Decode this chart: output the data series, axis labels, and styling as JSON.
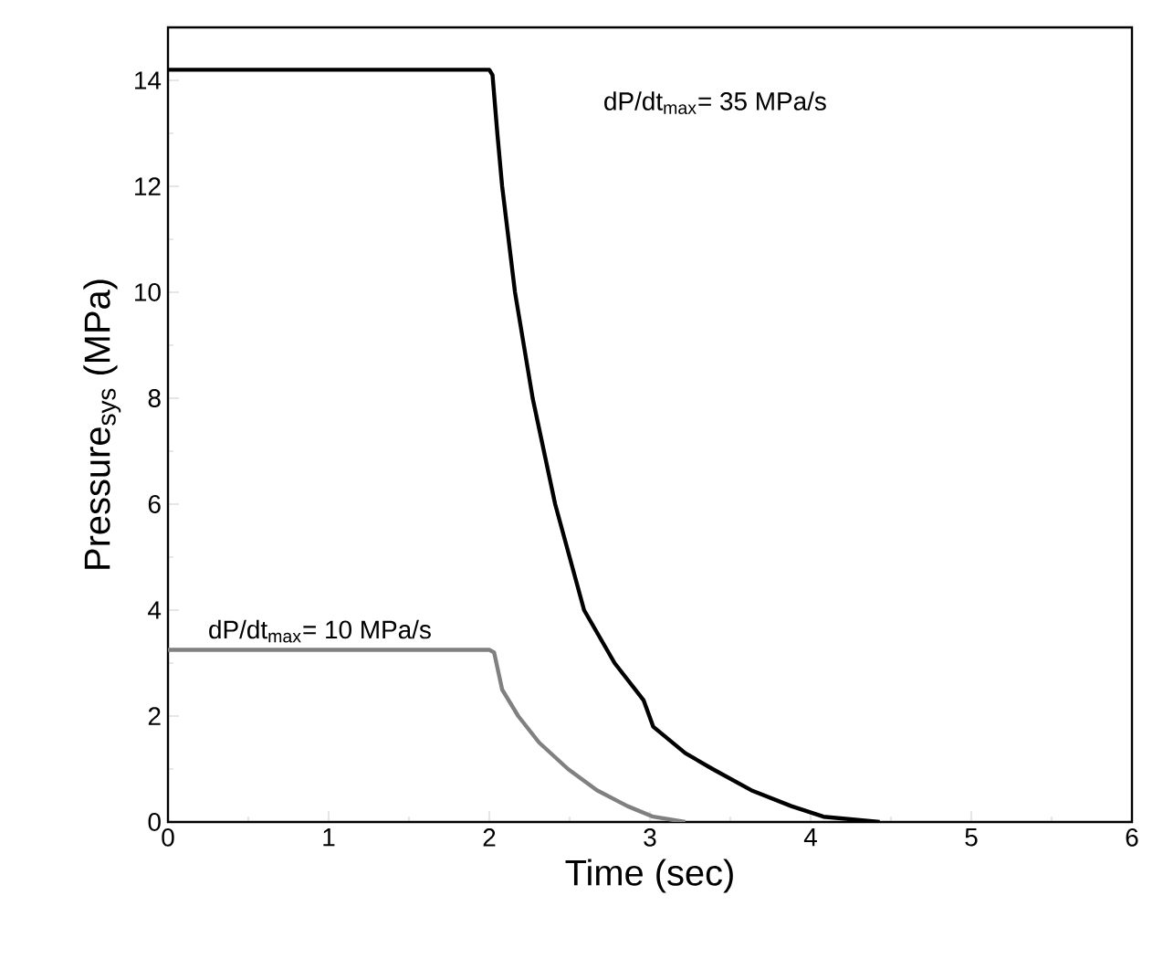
{
  "chart_data": {
    "type": "line",
    "xlabel": "Time (sec)",
    "ylabel": "Pressure$_{sys}$ (MPa)",
    "annotations": [
      "dP/dt$_{max}$= 35 MPa/s",
      "dP/dt$_{max}$= 10 MPa/s"
    ],
    "xlim": [
      0,
      6
    ],
    "ylim": [
      0,
      15
    ],
    "xticks": [
      0,
      1,
      2,
      3,
      4,
      5,
      6
    ],
    "yticks": [
      0,
      2,
      4,
      6,
      8,
      10,
      12,
      14
    ],
    "marker": "none",
    "line_style": "solid",
    "series": [
      {
        "color": "#000000",
        "x": [
          0,
          2.0,
          2.02,
          2.05,
          2.08,
          2.16,
          2.27,
          2.41,
          2.59,
          2.78,
          2.96,
          3.02,
          3.22,
          3.39,
          3.63,
          3.88,
          4.08,
          4.43
        ],
        "values": [
          14.2,
          14.2,
          14.1,
          13,
          12,
          10,
          8,
          6,
          4,
          3,
          2.3,
          1.8,
          1.3,
          1,
          0.6,
          0.3,
          0.1,
          0
        ]
      },
      {
        "color": "#808080",
        "x": [
          0,
          2.0,
          2.03,
          2.08,
          2.18,
          2.31,
          2.49,
          2.67,
          2.86,
          3.02,
          3.22
        ],
        "values": [
          3.25,
          3.25,
          3.2,
          2.5,
          2,
          1.5,
          1,
          0.6,
          0.3,
          0.1,
          0
        ]
      }
    ]
  }
}
